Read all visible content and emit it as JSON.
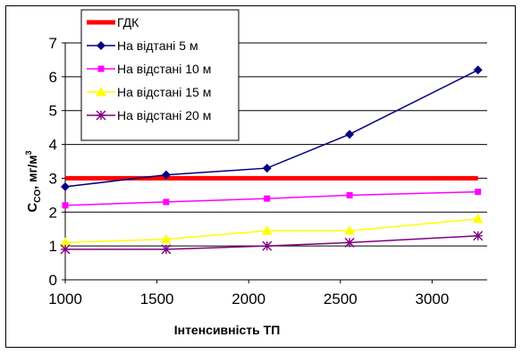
{
  "chart_data": {
    "type": "line",
    "xlabel": "Інтенсивність ТП",
    "ylabel": "C",
    "ylabel_sub": "CO",
    "ylabel_unit": ", мг/м",
    "ylabel_sup": "3",
    "xlim": [
      1000,
      3300
    ],
    "ylim": [
      0,
      7
    ],
    "xticks": [
      1000,
      1500,
      2000,
      2500,
      3000
    ],
    "yticks": [
      0,
      1,
      2,
      3,
      4,
      5,
      6,
      7
    ],
    "grid": "horizontal",
    "legend_position": "top-left",
    "series": [
      {
        "name": "ГДК",
        "color": "#ff0000",
        "marker": "none",
        "x": [
          1000,
          3250
        ],
        "y": [
          3.0,
          3.0
        ]
      },
      {
        "name": "На відтані 5 м",
        "color": "#000080",
        "marker": "diamond",
        "x": [
          1000,
          1550,
          2100,
          2550,
          3250
        ],
        "y": [
          2.75,
          3.1,
          3.3,
          4.3,
          6.2
        ]
      },
      {
        "name": "На відстані 10 м",
        "color": "#ff00ff",
        "marker": "square",
        "x": [
          1000,
          1550,
          2100,
          2550,
          3250
        ],
        "y": [
          2.2,
          2.3,
          2.4,
          2.5,
          2.6
        ]
      },
      {
        "name": "На відстані 15 м",
        "color": "#ffff00",
        "marker": "triangle",
        "x": [
          1000,
          1550,
          2100,
          2550,
          3250
        ],
        "y": [
          1.1,
          1.2,
          1.45,
          1.45,
          1.8
        ]
      },
      {
        "name": "На відстані 20 м",
        "color": "#800080",
        "marker": "star",
        "x": [
          1000,
          1550,
          2100,
          2550,
          3250
        ],
        "y": [
          0.9,
          0.9,
          1.0,
          1.1,
          1.3
        ]
      }
    ]
  }
}
